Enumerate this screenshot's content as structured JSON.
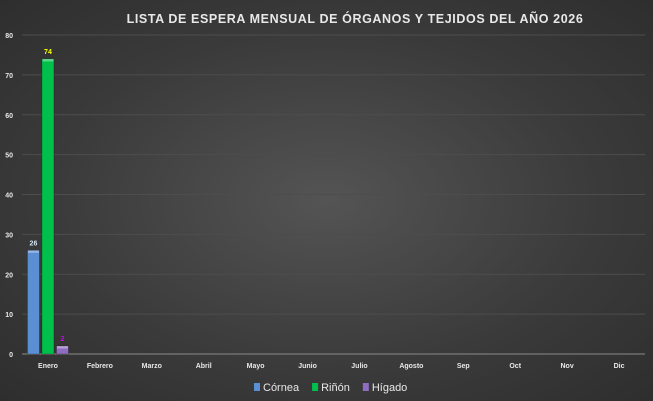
{
  "chart_data": {
    "type": "bar",
    "title": "LISTA DE ESPERA MENSUAL DE ÓRGANOS Y TEJIDOS  DEL AÑO 2026",
    "categories": [
      "Enero",
      "Febrero",
      "Marzo",
      "Abril",
      "Mayo",
      "Junio",
      "Julio",
      "Agosto",
      "Sep",
      "Oct",
      "Nov",
      "Dic"
    ],
    "series": [
      {
        "name": "Córnea",
        "color": "#5b8fd4",
        "label_color": "#cfe3f5",
        "values": [
          26,
          null,
          null,
          null,
          null,
          null,
          null,
          null,
          null,
          null,
          null,
          null
        ]
      },
      {
        "name": "Riñón",
        "color": "#00c04b",
        "label_color": "#ffff00",
        "values": [
          74,
          null,
          null,
          null,
          null,
          null,
          null,
          null,
          null,
          null,
          null,
          null
        ]
      },
      {
        "name": "Hígado",
        "color": "#8e6cc0",
        "label_color": "#cc00ff",
        "values": [
          2,
          null,
          null,
          null,
          null,
          null,
          null,
          null,
          null,
          null,
          null,
          null
        ]
      }
    ],
    "ylim": [
      0,
      80
    ],
    "yticks": [
      0,
      10,
      20,
      30,
      40,
      50,
      60,
      70,
      80
    ],
    "grid": true,
    "legend": "bottom"
  }
}
